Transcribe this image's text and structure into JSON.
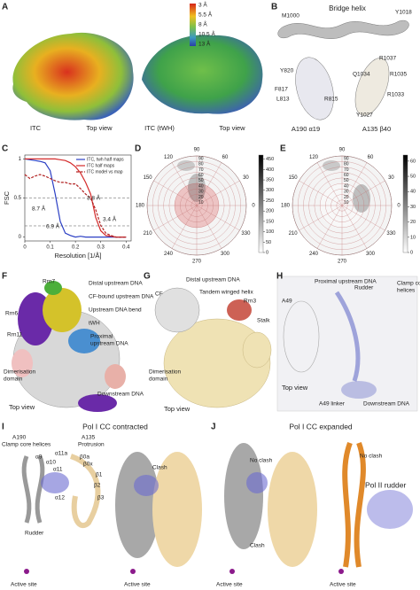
{
  "panels": {
    "A": {
      "label": "A",
      "colorbar_labels": [
        "3 Å",
        "5.5 Å",
        "8 Å",
        "10.5 Å",
        "13 Å"
      ],
      "captions": [
        "ITC",
        "Top view",
        "ITC (tWH)",
        "Top view"
      ]
    },
    "B": {
      "label": "B",
      "title": "Bridge helix",
      "top_residues": [
        "M1000",
        "Y1018"
      ],
      "left_residues": [
        "Y820",
        "F817",
        "L813",
        "R815"
      ],
      "left_caption": "A190 α19",
      "right_residues": [
        "R1037",
        "Q1034",
        "R1035",
        "R1033",
        "Y1027"
      ],
      "right_caption": "A135 β40"
    },
    "C": {
      "label": "C",
      "chart_data": {
        "type": "line",
        "xlabel": "Resolution [1/Å]",
        "ylabel": "FSC",
        "x": [
          0,
          0.02,
          0.04,
          0.06,
          0.08,
          0.1,
          0.12,
          0.14,
          0.16,
          0.18,
          0.2,
          0.22,
          0.24,
          0.26,
          0.28,
          0.3,
          0.32,
          0.34,
          0.36,
          0.38,
          0.4
        ],
        "series": [
          {
            "name": "ITC, twh half maps",
            "color": "#2b3fc4",
            "values": [
              1,
              0.99,
              0.98,
              0.97,
              0.95,
              0.85,
              0.55,
              0.2,
              0.05,
              0.02,
              0,
              0.01,
              0,
              0,
              0,
              0,
              0,
              0,
              0,
              0,
              0
            ]
          },
          {
            "name": "ITC half maps",
            "color": "#d42a2a",
            "values": [
              1,
              1,
              1,
              1,
              1,
              1,
              1,
              0.99,
              0.98,
              0.95,
              0.9,
              0.82,
              0.7,
              0.55,
              0.25,
              0.08,
              0.02,
              0.01,
              0,
              0,
              0
            ]
          },
          {
            "name": "ITC model vs map",
            "color": "#b22222",
            "dashed": true,
            "values": [
              0.8,
              0.75,
              0.78,
              0.8,
              0.78,
              0.75,
              0.72,
              0.7,
              0.7,
              0.68,
              0.68,
              0.62,
              0.55,
              0.5,
              0.35,
              0.15,
              0.05,
              0.02,
              0,
              0,
              0
            ]
          }
        ],
        "xlim": [
          0,
          0.42
        ],
        "ylim": [
          -0.05,
          1.05
        ],
        "xticks": [
          0,
          0.1,
          0.2,
          0.3,
          0.4
        ],
        "yticks": [
          0,
          0.5,
          1
        ],
        "hlines": [
          0.5,
          0.143
        ],
        "annotations": [
          {
            "text": "8.7 Å",
            "color": "#2b3fc4"
          },
          {
            "text": "6.9 Å",
            "color": "#2b3fc4"
          },
          {
            "text": "3.8 Å",
            "color": "#d42a2a"
          },
          {
            "text": "3.4 Å",
            "color": "#d42a2a"
          }
        ]
      }
    },
    "D": {
      "label": "D",
      "chart_data": {
        "type": "polar",
        "angle_ticks": [
          0,
          30,
          60,
          90,
          120,
          150,
          180,
          210,
          240,
          270,
          300,
          330
        ],
        "radial_ticks": [
          10,
          20,
          30,
          40,
          50,
          60,
          70,
          80,
          90
        ],
        "rlim": [
          0,
          90
        ],
        "colorbar_ticks": [
          0,
          50,
          100,
          150,
          200,
          250,
          300,
          350,
          400,
          450
        ],
        "colorbar_lim": [
          0,
          470
        ],
        "center_color": "#e06a6a"
      }
    },
    "E": {
      "label": "E",
      "chart_data": {
        "type": "polar",
        "angle_ticks": [
          0,
          30,
          60,
          90,
          120,
          150,
          180,
          210,
          240,
          270,
          300,
          330
        ],
        "radial_ticks": [
          10,
          20,
          30,
          40,
          50,
          60,
          70,
          80,
          90
        ],
        "rlim": [
          0,
          90
        ],
        "colorbar_ticks": [
          0,
          10,
          20,
          30,
          40,
          50,
          60
        ],
        "colorbar_lim": [
          0,
          64
        ],
        "center_color": "#ffffff"
      }
    },
    "F": {
      "label": "F",
      "texts": [
        "Rrn7",
        "Rrn6",
        "Rrn11",
        "Distal upstream DNA",
        "CF-bound upstream DNA",
        "Upstream DNA bend",
        "tWH",
        "Proximal",
        "upstream DNA",
        "Dimerisation",
        "domain",
        "Downstream DNA",
        "Top view"
      ]
    },
    "G": {
      "label": "G",
      "texts": [
        "CF",
        "Distal upstream DNA",
        "Tandem winged helix",
        "Rrn3",
        "Stalk",
        "Dimerisation",
        "domain",
        "Top view"
      ]
    },
    "H": {
      "label": "H",
      "texts": [
        "Proximal upstream DNA",
        "Rudder",
        "Clamp core",
        "helices",
        "A49",
        "A49 linker",
        "Downstream DNA",
        "Top view"
      ]
    },
    "I": {
      "label": "I",
      "title": "Pol I CC contracted",
      "texts": [
        "A190",
        "Clamp core helices",
        "A135",
        "Protrusion",
        "α9",
        "α10",
        "α11a",
        "β0a",
        "α11",
        "β0x",
        "β1",
        "β2",
        "β3",
        "α12",
        "Rudder",
        "Active site",
        "Clash",
        "Active site"
      ]
    },
    "J": {
      "label": "J",
      "title": "Pol I CC expanded",
      "texts": [
        "No clash",
        "Clash",
        "No clash",
        "Pol II rudder",
        "Active site",
        "Active site"
      ]
    }
  }
}
